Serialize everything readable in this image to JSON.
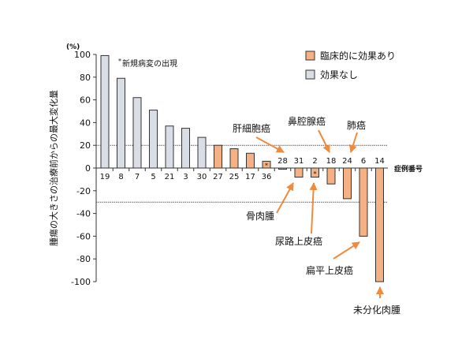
{
  "chart_data": {
    "type": "bar",
    "unit_label": "(%)",
    "ylabel": "腫瘍の大きさの治療前からの最大変化量",
    "xlabel": "症例番号",
    "ylim": [
      -100,
      100
    ],
    "yticks": [
      "100",
      "80",
      "60",
      "40",
      "20",
      "0",
      "-20",
      "-40",
      "-60",
      "-80",
      "-100"
    ],
    "reference_lines": [
      20,
      -30
    ],
    "categories": [
      "19",
      "8",
      "7",
      "5",
      "21",
      "3",
      "30",
      "27",
      "25",
      "17",
      "36",
      "28",
      "31",
      "2",
      "18",
      "24",
      "6",
      "14"
    ],
    "values": [
      99,
      79,
      62,
      51,
      37,
      35,
      27,
      20,
      17,
      13,
      6,
      -1,
      -8,
      -8,
      -14,
      -27,
      -60,
      -100
    ],
    "response": [
      "no",
      "no",
      "no",
      "no",
      "no",
      "no",
      "no",
      "yes",
      "yes",
      "yes",
      "yes",
      "yes",
      "yes",
      "yes",
      "yes",
      "yes",
      "yes",
      "yes"
    ],
    "new_lesion": [
      "36",
      "2"
    ],
    "footnote": "新規病変の出現",
    "footnote_mark": "*",
    "legend": [
      {
        "name": "臨床的に効果あり",
        "color": "#f5b183"
      },
      {
        "name": "効果なし",
        "color": "#d8dde6"
      }
    ],
    "legend_placement": "top-right",
    "annotations": [
      {
        "text": "肝細胞癌",
        "target": "28"
      },
      {
        "text": "鼻腔腺癌",
        "target": "18"
      },
      {
        "text": "肺癌",
        "target": "24"
      },
      {
        "text": "骨肉腫",
        "target": "31"
      },
      {
        "text": "尿路上皮癌",
        "target": "2"
      },
      {
        "text": "扁平上皮癌",
        "target": "6"
      },
      {
        "text": "未分化肉腫",
        "target": "14"
      }
    ],
    "colors": {
      "responder": "#f5b183",
      "non_responder": "#d8dde6",
      "arrow": "#f08a3c"
    }
  }
}
